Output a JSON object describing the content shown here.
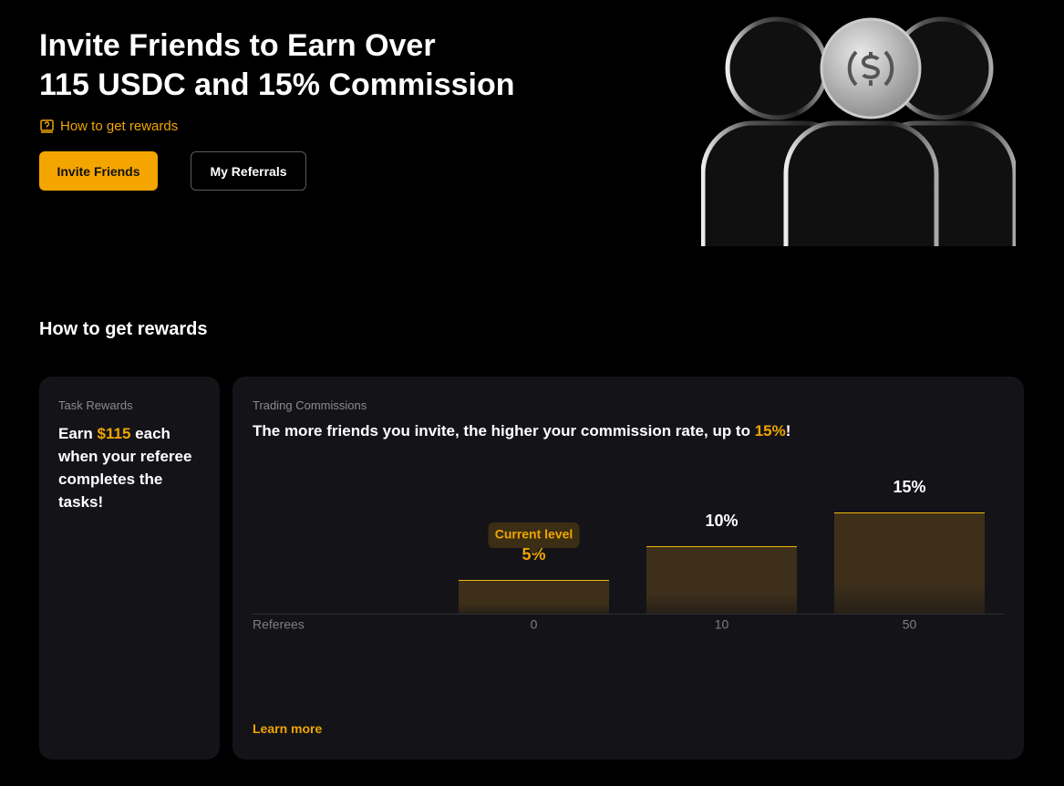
{
  "header": {
    "title_line1": "Invite Friends to Earn Over",
    "title_line2": "115 USDC and 15% Commission",
    "how_link": "How to get rewards",
    "invite_button": "Invite Friends",
    "referrals_button": "My Referrals"
  },
  "section_title": "How to get rewards",
  "task_card": {
    "label": "Task Rewards",
    "earn": "Earn",
    "amount": "$115",
    "rest": "each when your referee completes the tasks!"
  },
  "commission_card": {
    "label": "Trading Commissions",
    "headline": "The more friends you invite, the higher your commission rate, up to",
    "highlight": "15%",
    "end": "!",
    "learn_more": "Learn more"
  },
  "chart_data": {
    "type": "bar",
    "x_label": "Referees",
    "categories": [
      "0",
      "10",
      "50"
    ],
    "values": [
      5,
      10,
      15
    ],
    "value_labels": [
      "5%",
      "10%",
      "15%"
    ],
    "annotation": "Current level",
    "color": "#3d2f19",
    "edge_color": "#f0b90b"
  }
}
